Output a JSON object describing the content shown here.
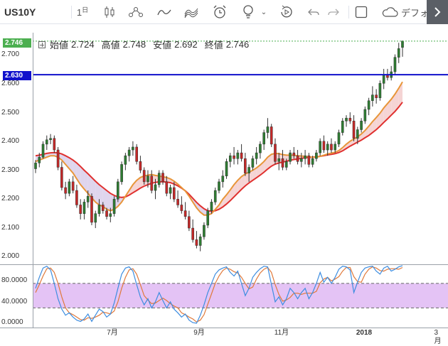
{
  "toolbar": {
    "symbol": "US10Y",
    "interval": "1",
    "interval_unit": "日",
    "template_label": "デフォ",
    "icons": [
      "candles-icon",
      "indicators-icon",
      "line-style-icon",
      "heikin-icon",
      "alert-icon",
      "idea-icon",
      "replay-icon",
      "undo-icon",
      "redo-icon",
      "fullscreen-icon",
      "cloud-icon",
      "expand-icon"
    ]
  },
  "legend": {
    "open_label": "始値",
    "open": "2.724",
    "high_label": "高値",
    "high": "2.748",
    "low_label": "安値",
    "low": "2.692",
    "close_label": "終値",
    "close": "2.746"
  },
  "tags": {
    "last_price": "2.746",
    "last_price_color": "#4caf50",
    "hline_price": "2.630",
    "hline_color": "#1111cc"
  },
  "colors": {
    "up": "#2e7d32",
    "down": "#c62828",
    "ma_fast": "#e8963a",
    "ma_slow": "#e0312f",
    "cloud_bull": "#d7cbe8",
    "cloud_bear": "#f2c9c9",
    "stoch_k": "#3d8de0",
    "stoch_d": "#e0793a",
    "stoch_band": "#e4c3f5"
  },
  "main_axis": {
    "labels": [
      "2.700",
      "2.600",
      "2.500",
      "2.400",
      "2.300",
      "2.200",
      "2.100",
      "2.000"
    ]
  },
  "osc_axis": {
    "labels": [
      "80.0000",
      "40.0000",
      "0.0000"
    ],
    "upper": 70,
    "lower": 30
  },
  "time_axis": {
    "labels": [
      {
        "text": "7月",
        "bold": false
      },
      {
        "text": "9月",
        "bold": false
      },
      {
        "text": "11月",
        "bold": false
      },
      {
        "text": "2018",
        "bold": true
      },
      {
        "text": "3月",
        "bold": false
      }
    ]
  },
  "chart_data": {
    "type": "candlestick",
    "ylim": [
      1.975,
      2.775
    ],
    "osc_ylim": [
      -2,
      100
    ],
    "hline": 2.63,
    "grid": false,
    "candles": [
      [
        2.305,
        2.335,
        2.29,
        2.325
      ],
      [
        2.325,
        2.36,
        2.31,
        2.345
      ],
      [
        2.345,
        2.4,
        2.34,
        2.39
      ],
      [
        2.39,
        2.42,
        2.37,
        2.405
      ],
      [
        2.405,
        2.425,
        2.39,
        2.41
      ],
      [
        2.41,
        2.42,
        2.36,
        2.37
      ],
      [
        2.37,
        2.38,
        2.3,
        2.31
      ],
      [
        2.31,
        2.33,
        2.23,
        2.24
      ],
      [
        2.24,
        2.26,
        2.2,
        2.22
      ],
      [
        2.22,
        2.27,
        2.21,
        2.26
      ],
      [
        2.26,
        2.28,
        2.22,
        2.23
      ],
      [
        2.23,
        2.25,
        2.17,
        2.18
      ],
      [
        2.18,
        2.2,
        2.13,
        2.15
      ],
      [
        2.15,
        2.2,
        2.13,
        2.19
      ],
      [
        2.19,
        2.23,
        2.17,
        2.21
      ],
      [
        2.21,
        2.22,
        2.11,
        2.12
      ],
      [
        2.12,
        2.16,
        2.1,
        2.15
      ],
      [
        2.15,
        2.2,
        2.14,
        2.18
      ],
      [
        2.18,
        2.19,
        2.15,
        2.16
      ],
      [
        2.16,
        2.17,
        2.13,
        2.14
      ],
      [
        2.14,
        2.17,
        2.12,
        2.15
      ],
      [
        2.15,
        2.21,
        2.14,
        2.2
      ],
      [
        2.2,
        2.27,
        2.19,
        2.26
      ],
      [
        2.26,
        2.33,
        2.25,
        2.32
      ],
      [
        2.32,
        2.36,
        2.3,
        2.35
      ],
      [
        2.35,
        2.38,
        2.33,
        2.37
      ],
      [
        2.37,
        2.4,
        2.35,
        2.38
      ],
      [
        2.38,
        2.39,
        2.32,
        2.33
      ],
      [
        2.33,
        2.35,
        2.29,
        2.3
      ],
      [
        2.3,
        2.31,
        2.25,
        2.26
      ],
      [
        2.26,
        2.3,
        2.24,
        2.28
      ],
      [
        2.28,
        2.3,
        2.22,
        2.23
      ],
      [
        2.23,
        2.27,
        2.2,
        2.25
      ],
      [
        2.25,
        2.3,
        2.24,
        2.29
      ],
      [
        2.29,
        2.3,
        2.25,
        2.26
      ],
      [
        2.26,
        2.28,
        2.21,
        2.22
      ],
      [
        2.22,
        2.25,
        2.2,
        2.24
      ],
      [
        2.24,
        2.26,
        2.19,
        2.2
      ],
      [
        2.2,
        2.23,
        2.17,
        2.18
      ],
      [
        2.18,
        2.21,
        2.15,
        2.16
      ],
      [
        2.16,
        2.19,
        2.13,
        2.14
      ],
      [
        2.14,
        2.16,
        2.09,
        2.1
      ],
      [
        2.1,
        2.13,
        2.05,
        2.06
      ],
      [
        2.06,
        2.09,
        2.03,
        2.04
      ],
      [
        2.04,
        2.08,
        2.02,
        2.07
      ],
      [
        2.07,
        2.12,
        2.06,
        2.11
      ],
      [
        2.11,
        2.17,
        2.1,
        2.16
      ],
      [
        2.16,
        2.2,
        2.15,
        2.19
      ],
      [
        2.19,
        2.24,
        2.18,
        2.23
      ],
      [
        2.23,
        2.27,
        2.22,
        2.26
      ],
      [
        2.26,
        2.3,
        2.24,
        2.28
      ],
      [
        2.28,
        2.34,
        2.27,
        2.33
      ],
      [
        2.33,
        2.36,
        2.31,
        2.35
      ],
      [
        2.35,
        2.38,
        2.32,
        2.34
      ],
      [
        2.34,
        2.37,
        2.32,
        2.36
      ],
      [
        2.36,
        2.39,
        2.33,
        2.34
      ],
      [
        2.34,
        2.36,
        2.28,
        2.29
      ],
      [
        2.29,
        2.32,
        2.26,
        2.31
      ],
      [
        2.31,
        2.35,
        2.3,
        2.34
      ],
      [
        2.34,
        2.38,
        2.32,
        2.36
      ],
      [
        2.36,
        2.4,
        2.34,
        2.39
      ],
      [
        2.39,
        2.44,
        2.37,
        2.43
      ],
      [
        2.43,
        2.48,
        2.41,
        2.45
      ],
      [
        2.45,
        2.46,
        2.38,
        2.39
      ],
      [
        2.39,
        2.41,
        2.32,
        2.33
      ],
      [
        2.33,
        2.36,
        2.3,
        2.34
      ],
      [
        2.34,
        2.37,
        2.3,
        2.31
      ],
      [
        2.31,
        2.34,
        2.3,
        2.33
      ],
      [
        2.33,
        2.37,
        2.32,
        2.36
      ],
      [
        2.36,
        2.38,
        2.34,
        2.35
      ],
      [
        2.35,
        2.37,
        2.32,
        2.33
      ],
      [
        2.33,
        2.36,
        2.31,
        2.34
      ],
      [
        2.34,
        2.37,
        2.32,
        2.35
      ],
      [
        2.35,
        2.36,
        2.31,
        2.32
      ],
      [
        2.32,
        2.35,
        2.31,
        2.34
      ],
      [
        2.34,
        2.37,
        2.33,
        2.36
      ],
      [
        2.36,
        2.41,
        2.35,
        2.4
      ],
      [
        2.4,
        2.42,
        2.36,
        2.37
      ],
      [
        2.37,
        2.4,
        2.35,
        2.39
      ],
      [
        2.39,
        2.41,
        2.36,
        2.37
      ],
      [
        2.37,
        2.4,
        2.36,
        2.39
      ],
      [
        2.39,
        2.44,
        2.38,
        2.43
      ],
      [
        2.43,
        2.48,
        2.42,
        2.47
      ],
      [
        2.47,
        2.49,
        2.45,
        2.48
      ],
      [
        2.48,
        2.5,
        2.46,
        2.47
      ],
      [
        2.47,
        2.49,
        2.4,
        2.41
      ],
      [
        2.41,
        2.45,
        2.39,
        2.44
      ],
      [
        2.44,
        2.48,
        2.43,
        2.47
      ],
      [
        2.47,
        2.52,
        2.46,
        2.51
      ],
      [
        2.51,
        2.55,
        2.49,
        2.54
      ],
      [
        2.54,
        2.59,
        2.52,
        2.56
      ],
      [
        2.56,
        2.58,
        2.53,
        2.55
      ],
      [
        2.55,
        2.61,
        2.54,
        2.6
      ],
      [
        2.6,
        2.65,
        2.58,
        2.63
      ],
      [
        2.63,
        2.65,
        2.61,
        2.62
      ],
      [
        2.62,
        2.66,
        2.61,
        2.64
      ],
      [
        2.64,
        2.7,
        2.63,
        2.69
      ],
      [
        2.69,
        2.74,
        2.67,
        2.72
      ],
      [
        2.724,
        2.748,
        2.692,
        2.746
      ]
    ],
    "ma_fast": [
      2.33,
      2.335,
      2.34,
      2.345,
      2.35,
      2.35,
      2.345,
      2.335,
      2.32,
      2.305,
      2.29,
      2.27,
      2.25,
      2.235,
      2.22,
      2.205,
      2.19,
      2.18,
      2.175,
      2.165,
      2.16,
      2.165,
      2.175,
      2.19,
      2.21,
      2.23,
      2.25,
      2.265,
      2.275,
      2.28,
      2.283,
      2.285,
      2.282,
      2.28,
      2.277,
      2.275,
      2.27,
      2.262,
      2.252,
      2.24,
      2.228,
      2.21,
      2.19,
      2.17,
      2.155,
      2.145,
      2.145,
      2.15,
      2.165,
      2.18,
      2.2,
      2.215,
      2.232,
      2.25,
      2.265,
      2.278,
      2.287,
      2.293,
      2.3,
      2.308,
      2.318,
      2.33,
      2.345,
      2.355,
      2.358,
      2.357,
      2.354,
      2.352,
      2.352,
      2.352,
      2.35,
      2.349,
      2.348,
      2.346,
      2.345,
      2.345,
      2.348,
      2.352,
      2.356,
      2.359,
      2.362,
      2.368,
      2.378,
      2.39,
      2.4,
      2.408,
      2.415,
      2.425,
      2.437,
      2.452,
      2.468,
      2.482,
      2.497,
      2.515,
      2.53,
      2.545,
      2.563,
      2.583,
      2.605
    ],
    "ma_slow": [
      2.35,
      2.352,
      2.355,
      2.358,
      2.36,
      2.361,
      2.36,
      2.356,
      2.35,
      2.343,
      2.335,
      2.325,
      2.313,
      2.3,
      2.288,
      2.275,
      2.262,
      2.25,
      2.24,
      2.23,
      2.22,
      2.213,
      2.208,
      2.206,
      2.208,
      2.214,
      2.222,
      2.23,
      2.238,
      2.245,
      2.25,
      2.255,
      2.258,
      2.26,
      2.26,
      2.259,
      2.257,
      2.252,
      2.246,
      2.238,
      2.229,
      2.217,
      2.203,
      2.189,
      2.177,
      2.167,
      2.16,
      2.158,
      2.16,
      2.165,
      2.173,
      2.183,
      2.195,
      2.208,
      2.221,
      2.234,
      2.246,
      2.256,
      2.265,
      2.274,
      2.283,
      2.293,
      2.304,
      2.314,
      2.321,
      2.325,
      2.328,
      2.331,
      2.334,
      2.337,
      2.339,
      2.341,
      2.343,
      2.344,
      2.345,
      2.346,
      2.348,
      2.35,
      2.353,
      2.355,
      2.357,
      2.361,
      2.367,
      2.375,
      2.383,
      2.39,
      2.397,
      2.404,
      2.412,
      2.42,
      2.43,
      2.44,
      2.452,
      2.465,
      2.477,
      2.49,
      2.503,
      2.518,
      2.535
    ]
  },
  "stoch_data": {
    "k": [
      62,
      80,
      95,
      98,
      92,
      70,
      45,
      28,
      18,
      22,
      15,
      10,
      8,
      12,
      20,
      8,
      18,
      28,
      24,
      15,
      20,
      38,
      62,
      85,
      95,
      97,
      90,
      68,
      48,
      35,
      45,
      30,
      40,
      55,
      42,
      30,
      40,
      28,
      22,
      15,
      20,
      10,
      6,
      5,
      18,
      35,
      55,
      70,
      85,
      92,
      95,
      97,
      88,
      82,
      90,
      70,
      50,
      62,
      80,
      88,
      94,
      98,
      97,
      68,
      40,
      48,
      35,
      45,
      62,
      55,
      45,
      55,
      62,
      45,
      55,
      70,
      88,
      72,
      80,
      70,
      80,
      93,
      98,
      97,
      92,
      55,
      72,
      88,
      95,
      97,
      98,
      90,
      85,
      95,
      98,
      90,
      93,
      97,
      99
    ],
    "d": [
      55,
      68,
      82,
      94,
      95,
      88,
      70,
      48,
      30,
      22,
      19,
      15,
      11,
      10,
      14,
      13,
      15,
      18,
      23,
      22,
      20,
      25,
      40,
      62,
      80,
      92,
      94,
      85,
      68,
      50,
      43,
      37,
      38,
      42,
      46,
      42,
      37,
      33,
      30,
      22,
      19,
      15,
      12,
      7,
      10,
      19,
      36,
      53,
      70,
      82,
      91,
      95,
      93,
      89,
      87,
      80,
      70,
      61,
      64,
      77,
      87,
      93,
      96,
      88,
      68,
      52,
      41,
      43,
      47,
      54,
      54,
      52,
      54,
      54,
      54,
      57,
      71,
      77,
      80,
      74,
      77,
      81,
      90,
      96,
      96,
      81,
      73,
      72,
      85,
      93,
      97,
      95,
      91,
      90,
      93,
      94,
      94,
      93,
      96
    ]
  }
}
